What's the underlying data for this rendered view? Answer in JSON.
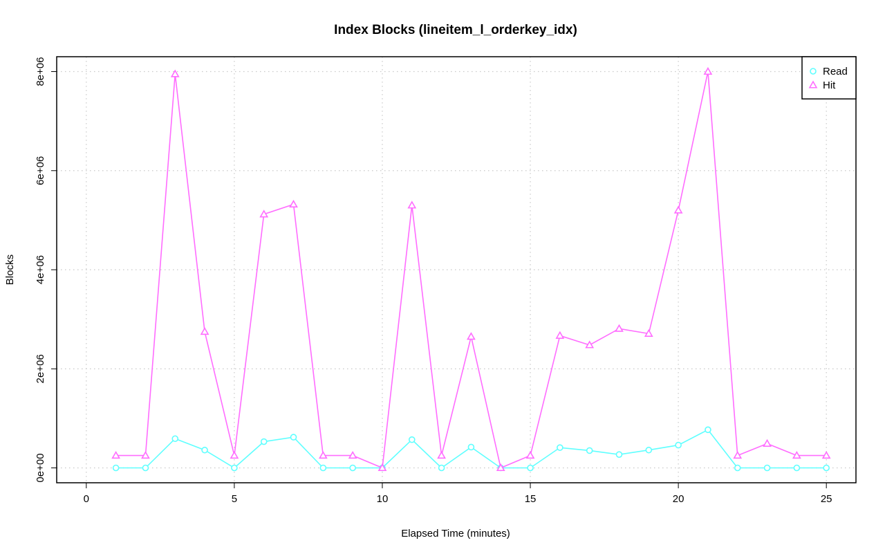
{
  "chart_data": {
    "type": "line",
    "title": "Index Blocks (lineitem_l_orderkey_idx)",
    "xlabel": "Elapsed Time (minutes)",
    "ylabel": "Blocks",
    "xlim": [
      -1,
      26
    ],
    "ylim": [
      -300000,
      8300000
    ],
    "xticks": [
      0,
      5,
      10,
      15,
      20,
      25
    ],
    "xtick_labels": [
      "0",
      "5",
      "10",
      "15",
      "20",
      "25"
    ],
    "yticks": [
      0,
      2000000,
      4000000,
      6000000,
      8000000
    ],
    "ytick_labels": [
      "0e+00",
      "2e+06",
      "4e+06",
      "6e+06",
      "8e+06"
    ],
    "grid": true,
    "legend_position": "top-right",
    "x": [
      1,
      2,
      3,
      4,
      5,
      6,
      7,
      8,
      9,
      10,
      11,
      12,
      13,
      14,
      15,
      16,
      17,
      18,
      19,
      20,
      21,
      22,
      23,
      24,
      25
    ],
    "series": [
      {
        "name": "Read",
        "color": "#5effff",
        "marker": "circle",
        "values": [
          0,
          0,
          590000,
          360000,
          0,
          530000,
          620000,
          0,
          0,
          0,
          570000,
          0,
          420000,
          0,
          0,
          410000,
          350000,
          270000,
          360000,
          460000,
          770000,
          0,
          0,
          0,
          0
        ]
      },
      {
        "name": "Hit",
        "color": "#ff6cff",
        "marker": "triangle",
        "values": [
          250000,
          250000,
          7950000,
          2750000,
          250000,
          5120000,
          5320000,
          250000,
          250000,
          0,
          5300000,
          250000,
          2650000,
          0,
          250000,
          2670000,
          2480000,
          2810000,
          2710000,
          5200000,
          8000000,
          250000,
          490000,
          250000,
          250000
        ]
      }
    ]
  }
}
